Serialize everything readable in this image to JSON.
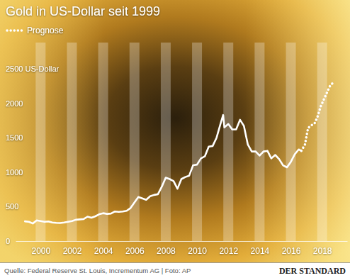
{
  "chart_data": {
    "type": "line",
    "title": "Gold in US-Dollar seit 1999",
    "source": "Quelle: Federal Reserve St. Louis, Incrementum AG | Foto: AP",
    "credit": "DER STANDARD",
    "legend": "upper left",
    "grid": false,
    "x": [
      1999.0,
      1999.25,
      1999.5,
      1999.75,
      2000.0,
      2000.25,
      2000.5,
      2000.75,
      2001.0,
      2001.25,
      2001.5,
      2001.75,
      2002.0,
      2002.25,
      2002.5,
      2002.75,
      2003.0,
      2003.25,
      2003.5,
      2003.75,
      2004.0,
      2004.25,
      2004.5,
      2004.75,
      2005.0,
      2005.25,
      2005.5,
      2005.75,
      2006.0,
      2006.25,
      2006.5,
      2006.75,
      2007.0,
      2007.25,
      2007.5,
      2007.75,
      2008.0,
      2008.25,
      2008.5,
      2008.75,
      2009.0,
      2009.25,
      2009.5,
      2009.75,
      2010.0,
      2010.25,
      2010.5,
      2010.75,
      2011.0,
      2011.25,
      2011.5,
      2011.67,
      2011.75,
      2012.0,
      2012.25,
      2012.5,
      2012.75,
      2013.0,
      2013.25,
      2013.5,
      2013.75,
      2014.0,
      2014.25,
      2014.5,
      2014.75,
      2015.0,
      2015.25,
      2015.5,
      2015.75,
      2016.0,
      2016.25,
      2016.5,
      2016.67,
      2016.9,
      2017.1,
      2017.3,
      2017.5,
      2017.7,
      2017.9,
      2018.1,
      2018.3,
      2018.5,
      2018.7
    ],
    "series": [
      {
        "color": "#ffffff",
        "line_style": "solid",
        "values": [
          287,
          280,
          256,
          300,
          290,
          280,
          285,
          270,
          265,
          262,
          270,
          280,
          290,
          310,
          315,
          320,
          355,
          340,
          360,
          390,
          405,
          395,
          400,
          430,
          425,
          430,
          440,
          480,
          560,
          640,
          620,
          600,
          650,
          670,
          680,
          790,
          920,
          900,
          870,
          760,
          900,
          930,
          950,
          1100,
          1110,
          1200,
          1230,
          1370,
          1380,
          1500,
          1700,
          1830,
          1650,
          1700,
          1620,
          1620,
          1760,
          1670,
          1400,
          1300,
          1300,
          1240,
          1300,
          1310,
          1200,
          1250,
          1190,
          1100,
          1070,
          1150,
          1260,
          1330,
          1310,
          null,
          null,
          null,
          null,
          null,
          null,
          null,
          null,
          null,
          null
        ]
      },
      {
        "name": "Prognose",
        "color": "#ffffff",
        "line_style": "dotted",
        "values": [
          null,
          null,
          null,
          null,
          null,
          null,
          null,
          null,
          null,
          null,
          null,
          null,
          null,
          null,
          null,
          null,
          null,
          null,
          null,
          null,
          null,
          null,
          null,
          null,
          null,
          null,
          null,
          null,
          null,
          null,
          null,
          null,
          null,
          null,
          null,
          null,
          null,
          null,
          null,
          null,
          null,
          null,
          null,
          null,
          null,
          null,
          null,
          null,
          null,
          null,
          null,
          null,
          null,
          null,
          null,
          null,
          null,
          null,
          null,
          null,
          null,
          null,
          null,
          null,
          null,
          null,
          null,
          null,
          null,
          null,
          null,
          null,
          1310,
          1400,
          1640,
          1680,
          1700,
          1800,
          1950,
          2050,
          2150,
          2250,
          2300
        ]
      }
    ],
    "xlim": [
      1998.4,
      2019.6
    ],
    "xticks": [
      2000,
      2002,
      2004,
      2006,
      2008,
      2010,
      2012,
      2014,
      2016,
      2018
    ],
    "ylim": [
      0,
      2500
    ],
    "yticks": [
      0,
      500,
      1000,
      1500,
      2000,
      {
        "value": 2500,
        "label": "2500 US-Dollar"
      }
    ]
  }
}
